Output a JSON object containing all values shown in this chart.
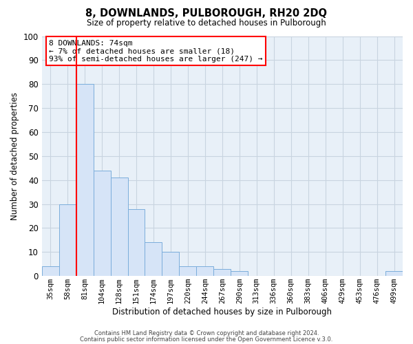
{
  "title": "8, DOWNLANDS, PULBOROUGH, RH20 2DQ",
  "subtitle": "Size of property relative to detached houses in Pulborough",
  "xlabel": "Distribution of detached houses by size in Pulborough",
  "ylabel": "Number of detached properties",
  "bar_labels": [
    "35sqm",
    "58sqm",
    "81sqm",
    "104sqm",
    "128sqm",
    "151sqm",
    "174sqm",
    "197sqm",
    "220sqm",
    "244sqm",
    "267sqm",
    "290sqm",
    "313sqm",
    "336sqm",
    "360sqm",
    "383sqm",
    "406sqm",
    "429sqm",
    "453sqm",
    "476sqm",
    "499sqm"
  ],
  "bar_values": [
    4,
    30,
    80,
    44,
    41,
    28,
    14,
    10,
    4,
    4,
    3,
    2,
    0,
    0,
    0,
    0,
    0,
    0,
    0,
    0,
    2
  ],
  "bar_color": "#d6e4f7",
  "bar_edge_color": "#7aaddb",
  "highlight_color": "#ff0000",
  "vline_x": 1.5,
  "ylim": [
    0,
    100
  ],
  "yticks": [
    0,
    10,
    20,
    30,
    40,
    50,
    60,
    70,
    80,
    90,
    100
  ],
  "annotation_title": "8 DOWNLANDS: 74sqm",
  "annotation_line1": "← 7% of detached houses are smaller (18)",
  "annotation_line2": "93% of semi-detached houses are larger (247) →",
  "footer1": "Contains HM Land Registry data © Crown copyright and database right 2024.",
  "footer2": "Contains public sector information licensed under the Open Government Licence v.3.0.",
  "bg_color": "#ffffff",
  "plot_bg_color": "#e8f0f8",
  "grid_color": "#c8d4e0"
}
